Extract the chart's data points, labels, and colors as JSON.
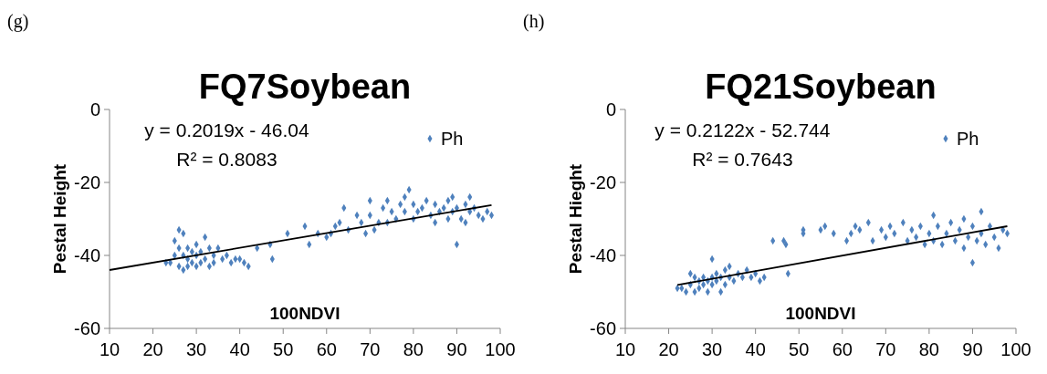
{
  "chart_data": [
    {
      "type": "scatter",
      "title": "FQ7Soybean",
      "xlabel": "100NDVI",
      "ylabel": "Pestal Height",
      "annotations": [
        "(g)",
        "y = 0.2019x - 46.04",
        "R² = 0.8083"
      ],
      "xlim": [
        10,
        100
      ],
      "ylim": [
        -60,
        0
      ],
      "xticks": [
        10,
        20,
        30,
        40,
        50,
        60,
        70,
        80,
        90,
        100
      ],
      "yticks": [
        -60,
        -40,
        -20,
        0
      ],
      "legend": "top right",
      "marker": "diamond",
      "series": [
        {
          "name": "Ph",
          "color": "#4f81bd",
          "x": [
            23,
            24,
            25,
            25,
            26,
            26,
            26,
            27,
            27,
            27,
            28,
            28,
            28,
            29,
            29,
            30,
            30,
            30,
            31,
            31,
            32,
            32,
            33,
            33,
            34,
            34,
            35,
            36,
            37,
            38,
            39,
            40,
            41,
            42,
            44,
            47,
            47.5,
            51,
            55,
            56,
            58,
            60,
            61,
            62,
            63,
            64,
            65,
            67,
            68,
            69,
            70,
            70,
            71,
            72,
            73,
            74,
            74,
            75,
            76,
            77,
            78,
            78,
            79,
            80,
            80,
            81,
            82,
            83,
            84,
            85,
            85,
            86,
            87,
            88,
            88,
            89,
            89,
            90,
            90,
            91,
            92,
            92,
            93,
            93,
            94,
            95,
            96,
            97,
            98
          ],
          "values": [
            -42,
            -42,
            -40,
            -36,
            -33,
            -38,
            -43,
            -34,
            -40,
            -44,
            -38,
            -41,
            -43,
            -39,
            -42,
            -37,
            -40,
            -43,
            -39,
            -42,
            -35,
            -41,
            -38,
            -43,
            -40,
            -42,
            -38,
            -41,
            -40,
            -42,
            -41,
            -41,
            -42,
            -43,
            -38,
            -37,
            -41,
            -34,
            -32,
            -37,
            -34,
            -35,
            -34,
            -32,
            -31,
            -27,
            -33,
            -29,
            -31,
            -34,
            -25,
            -29,
            -33,
            -31,
            -27,
            -25,
            -31,
            -28,
            -30,
            -26,
            -24,
            -28,
            -22,
            -26,
            -30,
            -28,
            -27,
            -25,
            -29,
            -26,
            -31,
            -28,
            -27,
            -25,
            -30,
            -24,
            -28,
            -37,
            -27,
            -30,
            -26,
            -31,
            -24,
            -28,
            -27,
            -29,
            -30,
            -28,
            -29
          ]
        },
        {
          "type": "line",
          "color": "#000000",
          "marker": "none",
          "x": [
            10,
            98
          ],
          "values": [
            -44,
            -26.2
          ]
        }
      ]
    },
    {
      "type": "scatter",
      "title": "FQ21Soybean",
      "xlabel": "100NDVI",
      "ylabel": "Pestal Hieght",
      "annotations": [
        "(h)",
        "y = 0.2122x - 52.744",
        "R² = 0.7643"
      ],
      "xlim": [
        10,
        100
      ],
      "ylim": [
        -60,
        0
      ],
      "xticks": [
        10,
        20,
        30,
        40,
        50,
        60,
        70,
        80,
        90,
        100
      ],
      "yticks": [
        -60,
        -40,
        -20,
        0
      ],
      "legend": "top right",
      "marker": "diamond",
      "series": [
        {
          "name": "Ph",
          "color": "#4f81bd",
          "x": [
            22,
            23,
            24,
            25,
            25,
            26,
            26,
            27,
            27,
            28,
            28,
            29,
            29,
            30,
            30,
            30,
            31,
            31,
            32,
            32,
            33,
            33,
            34,
            34,
            35,
            36,
            37,
            38,
            39,
            40,
            41,
            42,
            44,
            46.5,
            47,
            47.5,
            51,
            51,
            55,
            56,
            58,
            61,
            62,
            63,
            64,
            66,
            67,
            69,
            70,
            71,
            72,
            74,
            75,
            76,
            77,
            78,
            79,
            80,
            81,
            81,
            82,
            83,
            84,
            85,
            86,
            87,
            88,
            88,
            89,
            90,
            90,
            91,
            92,
            92,
            93,
            94,
            95,
            96,
            97,
            98
          ],
          "values": [
            -49,
            -49,
            -50,
            -45,
            -48,
            -46,
            -50,
            -47,
            -49,
            -46,
            -48,
            -47,
            -50,
            -41,
            -46,
            -48,
            -45,
            -47,
            -46,
            -50,
            -44,
            -48,
            -43,
            -46,
            -47,
            -45,
            -46,
            -44,
            -46,
            -45,
            -47,
            -46,
            -36,
            -36,
            -37,
            -45,
            -33,
            -34,
            -33,
            -32,
            -34,
            -36,
            -34,
            -32,
            -33,
            -31,
            -36,
            -33,
            -35,
            -32,
            -34,
            -31,
            -36,
            -33,
            -35,
            -32,
            -37,
            -34,
            -29,
            -36,
            -32,
            -37,
            -34,
            -31,
            -36,
            -33,
            -38,
            -30,
            -35,
            -42,
            -32,
            -36,
            -28,
            -34,
            -37,
            -32,
            -35,
            -38,
            -33,
            -34
          ]
        },
        {
          "type": "line",
          "color": "#000000",
          "marker": "none",
          "x": [
            22,
            98
          ],
          "values": [
            -48.1,
            -32
          ]
        }
      ]
    }
  ]
}
